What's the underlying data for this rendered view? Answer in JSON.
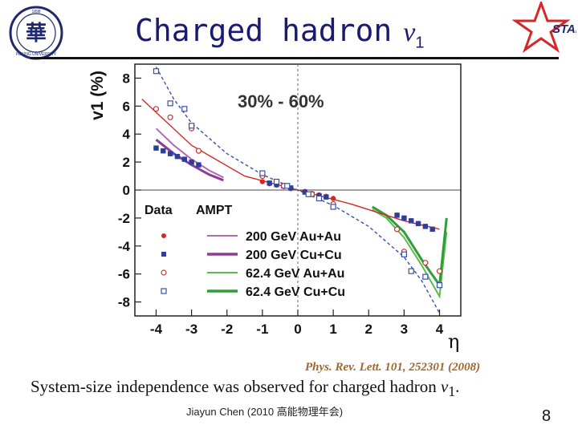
{
  "slide": {
    "title_text": "Charged hadron",
    "title_symbol": "v",
    "title_subscript": "1",
    "citation": "Phys. Rev. Lett. 101, 252301 (2008)",
    "conclusion_text": "System-size independence was observed for charged hadron ",
    "conclusion_symbol": "v",
    "conclusion_subscript": "1",
    "conclusion_end": ".",
    "footer": "Jiayun Chen (2010 高能物理年会)",
    "page_number": "8",
    "left_logo_text": "PEKING UNIVERSITY",
    "left_logo_top": "1898",
    "right_logo_text": "STAR"
  },
  "colors": {
    "title": "#1a1a6e",
    "au_au_200": "#d62728",
    "cu_cu_200": "#2a3f9e",
    "au_au_624": "#c0392b",
    "cu_cu_624": "#3a4fa8",
    "ampt_auau_200": "#b26bb2",
    "ampt_cucu_200": "#8e3b96",
    "ampt_auau_624": "#5dbb4a",
    "ampt_cucu_624": "#2e9e3a",
    "star_logo": "#d62728"
  },
  "chart_data": {
    "type": "scatter",
    "title": "30% - 60%",
    "ylabel": "v1 (%)",
    "xlabel": "η",
    "xlim": [
      -4.6,
      4.6
    ],
    "ylim": [
      -9,
      9
    ],
    "xticks": [
      "-4",
      "-3",
      "-2",
      "-1",
      "0",
      "1",
      "2",
      "3",
      "4"
    ],
    "yticks": [
      "8",
      "6",
      "4",
      "2",
      "0",
      "-2",
      "-4",
      "-6",
      "-8"
    ],
    "legend": {
      "header_data": "Data",
      "header_model": "AMPT",
      "entries": [
        "200 GeV Au+Au",
        "200 GeV Cu+Cu",
        "62.4 GeV Au+Au",
        "62.4 GeV Cu+Cu"
      ]
    },
    "series": [
      {
        "name": "200 GeV Au+Au",
        "marker": "filled-circle",
        "color": "#d62728",
        "x": [
          -4.0,
          -3.8,
          -3.6,
          -3.4,
          -3.2,
          -3.0,
          -2.8,
          -1.0,
          -0.8,
          -0.6,
          -0.4,
          -0.2,
          0.2,
          0.4,
          0.6,
          0.8,
          1.0,
          2.8,
          3.0,
          3.2,
          3.4,
          3.6,
          3.8
        ],
        "y": [
          3.0,
          2.8,
          2.6,
          2.4,
          2.2,
          2.0,
          1.8,
          0.6,
          0.45,
          0.35,
          0.25,
          0.1,
          -0.1,
          -0.25,
          -0.35,
          -0.45,
          -0.6,
          -1.8,
          -2.0,
          -2.2,
          -2.4,
          -2.6,
          -2.8
        ]
      },
      {
        "name": "200 GeV Cu+Cu",
        "marker": "filled-square",
        "color": "#2a3f9e",
        "x": [
          -4.0,
          -3.8,
          -3.6,
          -3.4,
          -3.2,
          -3.0,
          -2.8,
          -0.8,
          -0.6,
          -0.4,
          -0.2,
          0.2,
          0.4,
          0.6,
          0.8,
          2.8,
          3.0,
          3.2,
          3.4,
          3.6,
          3.8
        ],
        "y": [
          3.0,
          2.8,
          2.6,
          2.4,
          2.2,
          2.0,
          1.8,
          0.5,
          0.4,
          0.3,
          0.15,
          -0.15,
          -0.3,
          -0.4,
          -0.5,
          -1.8,
          -2.0,
          -2.2,
          -2.4,
          -2.6,
          -2.8
        ]
      },
      {
        "name": "62.4 GeV Au+Au",
        "marker": "open-circle",
        "color": "#c0392b",
        "x": [
          -4.0,
          -3.6,
          -3.0,
          -2.8,
          -1.0,
          -0.4,
          0.4,
          1.0,
          2.8,
          3.0,
          3.6,
          4.0
        ],
        "y": [
          5.8,
          5.2,
          4.4,
          2.8,
          1.0,
          0.3,
          -0.3,
          -1.0,
          -2.8,
          -4.4,
          -5.2,
          -5.8
        ]
      },
      {
        "name": "62.4 GeV Cu+Cu",
        "marker": "open-square",
        "color": "#3a4fa8",
        "x": [
          -4.0,
          -3.6,
          -3.2,
          -3.0,
          -1.0,
          -0.6,
          -0.3,
          0.3,
          0.6,
          1.0,
          3.0,
          3.2,
          3.6,
          4.0
        ],
        "y": [
          8.5,
          6.2,
          5.8,
          4.6,
          1.2,
          0.6,
          0.3,
          -0.3,
          -0.6,
          -1.2,
          -4.6,
          -5.8,
          -6.2,
          -6.8
        ]
      }
    ],
    "model_curves": [
      {
        "name": "AMPT 200 GeV Au+Au",
        "x": [
          -4.0,
          -3.5,
          -3.0,
          -2.5,
          -2.1
        ],
        "y": [
          4.4,
          3.2,
          2.2,
          1.4,
          0.9
        ]
      },
      {
        "name": "AMPT 200 GeV Cu+Cu",
        "x": [
          -4.0,
          -3.5,
          -3.0,
          -2.5,
          -2.1
        ],
        "y": [
          3.6,
          2.6,
          1.8,
          1.1,
          0.7
        ]
      },
      {
        "name": "AMPT 62.4 GeV Au+Au",
        "x": [
          2.1,
          2.5,
          3.0,
          3.5,
          4.0,
          4.2
        ],
        "y": [
          -1.4,
          -2.0,
          -3.4,
          -5.4,
          -7.6,
          -3.0
        ]
      },
      {
        "name": "AMPT 62.4 GeV Cu+Cu",
        "x": [
          2.1,
          2.5,
          3.0,
          3.5,
          4.0,
          4.2
        ],
        "y": [
          -1.2,
          -1.8,
          -3.0,
          -5.0,
          -6.8,
          -2.0
        ]
      }
    ],
    "fit_curves": [
      {
        "name": "red fit",
        "x": [
          -4.4,
          -3.0,
          -1.5,
          0,
          1.5,
          3.0,
          4.0
        ],
        "y": [
          6.5,
          3.2,
          1.0,
          0,
          -1.0,
          -2.2,
          -2.8
        ]
      },
      {
        "name": "blue dashed fit",
        "x": [
          -4.0,
          -3.5,
          -3.0,
          -2.0,
          -1.0,
          0,
          1.0,
          2.0,
          3.0,
          3.5,
          4.0
        ],
        "y": [
          8.8,
          6.5,
          4.8,
          2.6,
          1.1,
          0,
          -1.1,
          -2.6,
          -4.8,
          -6.5,
          -8.8
        ]
      }
    ]
  }
}
